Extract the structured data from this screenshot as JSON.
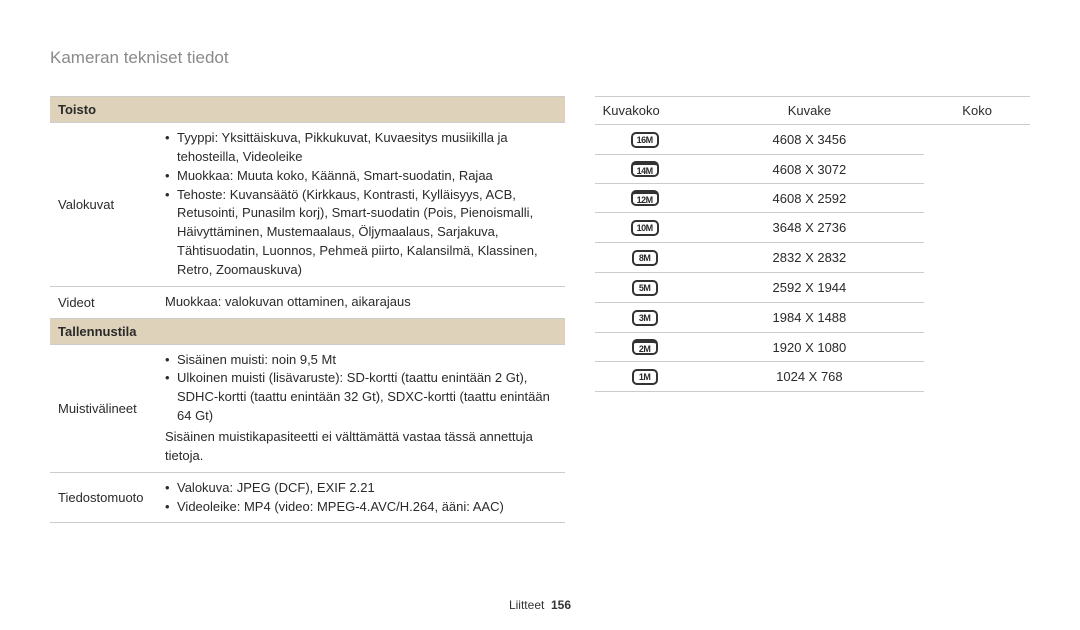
{
  "page_title": "Kameran tekniset tiedot",
  "footer_label": "Liitteet",
  "footer_page": "156",
  "left": {
    "section1": "Toisto",
    "row1_label": "Valokuvat",
    "row1_bullets": [
      "Tyyppi: Yksittäiskuva, Pikkukuvat, Kuvaesitys musiikilla ja tehosteilla, Videoleike",
      "Muokkaa: Muuta koko, Käännä, Smart-suodatin, Rajaa",
      "Tehoste: Kuvansäätö (Kirkkaus, Kontrasti, Kylläisyys, ACB, Retusointi, Punasilm korj), Smart-suodatin (Pois, Pienoismalli, Häivyttäminen, Mustemaalaus, Öljymaalaus, Sarjakuva, Tähtisuodatin, Luonnos, Pehmeä piirto, Kalansilmä, Klassinen, Retro, Zoomauskuva)"
    ],
    "row2_label": "Videot",
    "row2_text": "Muokkaa: valokuvan ottaminen, aikarajaus",
    "section2": "Tallennustila",
    "row3_label": "Muistivälineet",
    "row3_bullets": [
      "Sisäinen muisti: noin 9,5 Mt",
      "Ulkoinen muisti (lisävaruste): SD-kortti (taattu enintään 2 Gt), SDHC-kortti (taattu enintään 32 Gt), SDXC-kortti (taattu enintään 64 Gt)"
    ],
    "row3_note": "Sisäinen muistikapasiteetti ei välttämättä vastaa tässä annettuja tietoja.",
    "row4_label": "Tiedostomuoto",
    "row4_bullets": [
      "Valokuva: JPEG (DCF), EXIF 2.21",
      "Videoleike: MP4 (video: MPEG-4.AVC/H.264, ääni: AAC)"
    ]
  },
  "right": {
    "label": "Kuvakoko",
    "head1": "Kuvake",
    "head2": "Koko",
    "rows": [
      {
        "icon": "16M",
        "wide": false,
        "size": "4608 X 3456"
      },
      {
        "icon": "14M",
        "wide": true,
        "size": "4608 X 3072"
      },
      {
        "icon": "12M",
        "wide": true,
        "size": "4608 X 2592"
      },
      {
        "icon": "10M",
        "wide": false,
        "size": "3648 X 2736"
      },
      {
        "icon": "8M",
        "wide": false,
        "size": "2832 X 2832"
      },
      {
        "icon": "5M",
        "wide": false,
        "size": "2592 X 1944"
      },
      {
        "icon": "3M",
        "wide": false,
        "size": "1984 X 1488"
      },
      {
        "icon": "2M",
        "wide": true,
        "size": "1920 X 1080"
      },
      {
        "icon": "1M",
        "wide": false,
        "size": "1024 X 768"
      }
    ]
  }
}
